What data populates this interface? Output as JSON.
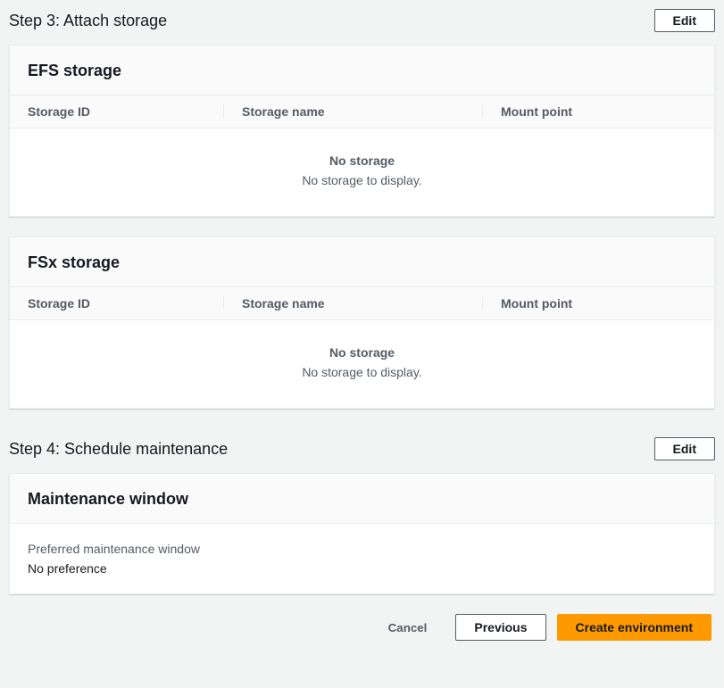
{
  "step3": {
    "title": "Step 3: Attach storage",
    "edit_label": "Edit",
    "efs": {
      "title": "EFS storage",
      "columns": {
        "c1": "Storage ID",
        "c2": "Storage name",
        "c3": "Mount point"
      },
      "empty_title": "No storage",
      "empty_sub": "No storage to display."
    },
    "fsx": {
      "title": "FSx storage",
      "columns": {
        "c1": "Storage ID",
        "c2": "Storage name",
        "c3": "Mount point"
      },
      "empty_title": "No storage",
      "empty_sub": "No storage to display."
    }
  },
  "step4": {
    "title": "Step 4: Schedule maintenance",
    "edit_label": "Edit",
    "card_title": "Maintenance window",
    "field_label": "Preferred maintenance window",
    "field_value": "No preference"
  },
  "footer": {
    "cancel": "Cancel",
    "previous": "Previous",
    "create": "Create environment"
  }
}
